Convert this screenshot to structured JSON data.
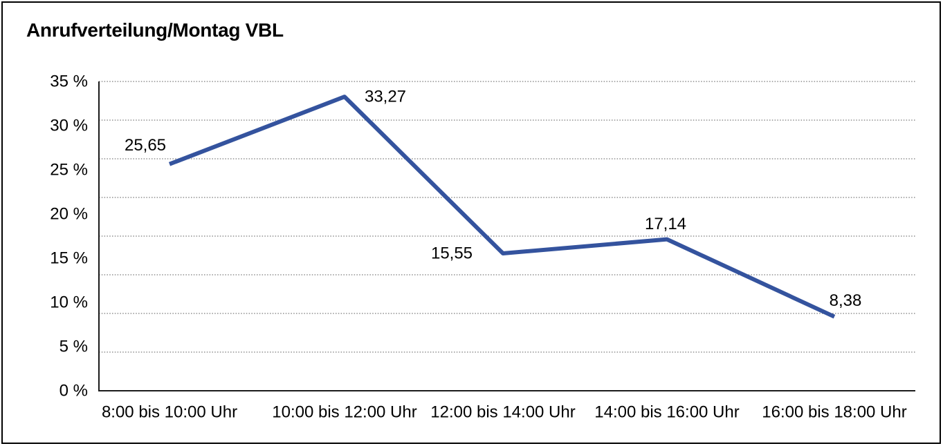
{
  "window": {
    "background": "#ffffff",
    "frame_border_color": "#000000"
  },
  "chart_data": {
    "type": "line",
    "title": "Anrufverteilung/Montag VBL",
    "categories": [
      "8:00 bis 10:00 Uhr",
      "10:00 bis 12:00 Uhr",
      "12:00 bis 14:00 Uhr",
      "14:00 bis 16:00 Uhr",
      "16:00 bis 18:00 Uhr"
    ],
    "values": [
      25.65,
      33.27,
      15.55,
      17.14,
      8.38
    ],
    "value_labels": [
      "25,65",
      "33,27",
      "15,55",
      "17,14",
      "8,38"
    ],
    "y_tick_labels": [
      "0 %",
      "5 %",
      "10 %",
      "15 %",
      "20 %",
      "25 %",
      "30 %",
      "35 %"
    ],
    "y_tick_values": [
      0,
      5,
      10,
      15,
      20,
      25,
      30,
      35
    ],
    "ylim": [
      0,
      35
    ],
    "xlabel": "",
    "ylabel": "",
    "legend": "none",
    "grid": "horizontal-dotted",
    "grid_divisions": 8,
    "line_color": "#34539e",
    "axis_color": "#1a1a1a",
    "gridline_color": "#555555",
    "text_color": "#000000"
  }
}
